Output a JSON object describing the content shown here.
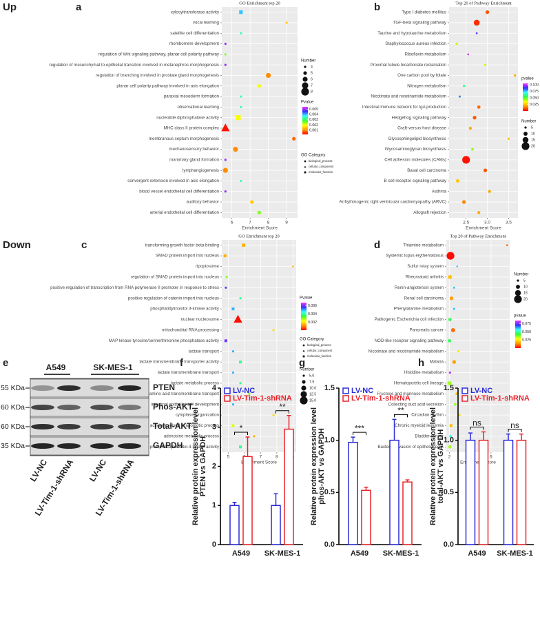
{
  "panels": {
    "up": "Up",
    "down": "Down",
    "letters": [
      "a",
      "b",
      "c",
      "d",
      "e",
      "f",
      "g",
      "h"
    ]
  },
  "blot": {
    "groups": [
      "A549",
      "SK-MES-1"
    ],
    "proteins": [
      "PTEN",
      "Phos-AKT",
      "Total-AKT",
      "GAPDH"
    ],
    "weights": [
      "55 KDa",
      "60 KDa",
      "60 KDa",
      "35 KDa"
    ],
    "lanes": [
      "LV-NC",
      "LV-Tim-1-shRNA",
      "LV-NC",
      "LV-Tim-1-shRNA"
    ]
  },
  "chart_data": [
    {
      "type": "dot",
      "title": "GO Enrichment top 20",
      "xlabel": "Enrichment Score",
      "categories": [
        "xylosyltransferase activity",
        "vocal learning",
        "satellite cell differentiation",
        "rhombomere development",
        "regulation of Wnt signaling pathway, planar cell polarity pathway",
        "regulation of mesenchymal to epithelial transition involved in metanephros morphogenesis",
        "regulation of branching involved in prostate gland morphogenesis",
        "planar cell polarity pathway involved in axis elongation",
        "paraxial mesoderm formation",
        "observational learning",
        "nucleotide diphosphatase activity",
        "MHC class II protein complex",
        "membranous septum morphogenesis",
        "mechanosensory behavior",
        "mammary gland formation",
        "lymphangiogenesis",
        "convergent extension involved in axis elongation",
        "blood vessel endothelial cell differentiation",
        "auditory behavior",
        "arterial endothelial cell differentiation"
      ],
      "values": [
        6.5,
        9.0,
        6.5,
        5.65,
        5.65,
        5.65,
        8.0,
        7.5,
        6.5,
        6.5,
        6.35,
        5.65,
        9.4,
        6.2,
        5.65,
        5.65,
        6.5,
        5.65,
        7.1,
        7.5
      ],
      "sizes": [
        5,
        4,
        4,
        4,
        4,
        4,
        6,
        5,
        4,
        4,
        6,
        8,
        5,
        6,
        4,
        6,
        4,
        4,
        5,
        5
      ],
      "pvalues": [
        0.004,
        0.0015,
        0.0035,
        0.005,
        0.0025,
        0.005,
        0.001,
        0.002,
        0.0035,
        0.0035,
        0.002,
        0.0003,
        0.0008,
        0.001,
        0.005,
        0.001,
        0.0035,
        0.005,
        0.0015,
        0.0025
      ],
      "shapes": [
        "molecular_function",
        "biological_process",
        "biological_process",
        "biological_process",
        "biological_process",
        "biological_process",
        "biological_process",
        "biological_process",
        "biological_process",
        "biological_process",
        "molecular_function",
        "cellular_component",
        "biological_process",
        "biological_process",
        "biological_process",
        "biological_process",
        "biological_process",
        "biological_process",
        "biological_process",
        "biological_process"
      ],
      "xlim": [
        5.45,
        9.6
      ],
      "xticks": [
        6,
        7,
        8,
        9
      ],
      "clim": [
        0.0002,
        0.0055
      ],
      "color_scale": [
        "#ff0000",
        "#ff9900",
        "#ffff00",
        "#33ff33",
        "#33ffff",
        "#3333ff",
        "#ff33ff"
      ],
      "size_legend": {
        "title": "Number",
        "values": [
          4,
          5,
          6,
          7,
          8
        ]
      },
      "color_legend": {
        "title": "Pvalue",
        "ticks": [
          0.005,
          0.004,
          0.003,
          0.002,
          0.001
        ]
      },
      "shape_legend": {
        "title": "GO Category",
        "names": [
          "biological_process",
          "cellular_component",
          "molecular_function"
        ]
      }
    },
    {
      "type": "dot",
      "title": "Top 20 of Pathway Enrichment",
      "xlabel": "Enrichment Score",
      "categories": [
        "Type I diabetes mellitus",
        "TGF-beta signaling pathway",
        "Taurine and hypotaurine metabolism",
        "Staphylococcus aureus infection",
        "Riboflavin metabolism",
        "Proximal tubule bicarbonate reclamation",
        "One carbon pool by folate",
        "Nitrogen metabolism",
        "Nicotinate and nicotinamide metabolism",
        "Intestinal immune network for IgA production",
        "Hedgehog signaling pathway",
        "Graft-versus-host disease",
        "Glycosphingolipid biosynthesis",
        "Glycosaminoglycan biosynthesis",
        "Cell adhesion molecules (CAMs)",
        "Basal cell carcinoma",
        "B cell receptor signaling pathway",
        "Asthma",
        "Arrhythmogenic right ventricular cardiomyopathy (ARVC)",
        "Allograft rejection"
      ],
      "values": [
        3.0,
        2.75,
        2.75,
        2.28,
        2.55,
        2.95,
        3.65,
        2.45,
        2.35,
        2.8,
        2.7,
        2.6,
        3.5,
        2.65,
        2.5,
        2.95,
        2.3,
        3.05,
        2.45,
        2.8
      ],
      "sizes": [
        9,
        15,
        4,
        6,
        4,
        5,
        5,
        5,
        5,
        8,
        9,
        7,
        5,
        6,
        20,
        9,
        8,
        7,
        9,
        7
      ],
      "pvalues": [
        0.01,
        0.005,
        0.09,
        0.04,
        0.1,
        0.04,
        0.02,
        0.06,
        0.08,
        0.012,
        0.01,
        0.02,
        0.025,
        0.045,
        0.002,
        0.01,
        0.025,
        0.02,
        0.015,
        0.02
      ],
      "xlim": [
        2.1,
        3.72
      ],
      "xticks": [
        {
          "value": 2.5,
          "label": "2.5"
        },
        {
          "value": 3.0,
          "label": "3.0"
        },
        {
          "value": 3.5,
          "label": "3.5"
        }
      ],
      "clim": [
        0.0,
        0.105
      ],
      "color_scale": [
        "#ff0000",
        "#ff9900",
        "#ffff00",
        "#33ff33",
        "#33ffff",
        "#3333ff",
        "#ff33ff"
      ],
      "size_legend": {
        "title": "Number",
        "values": [
          5,
          10,
          15,
          20
        ]
      },
      "color_legend": {
        "title": "pvalue",
        "ticks": [
          {
            "value": 0.1,
            "label": "0.100"
          },
          {
            "value": 0.075,
            "label": "0.075"
          },
          {
            "value": 0.05,
            "label": "0.050"
          },
          {
            "value": 0.025,
            "label": "0.025"
          }
        ]
      }
    },
    {
      "type": "dot",
      "title": "GO Enrichment top 20",
      "xlabel": "Enrichment Score",
      "categories": [
        "transforming growth factor beta binding",
        "SMAD protein import into nucleus",
        "ripoptosome",
        "regulation of SMAD protein import into nucleus",
        "positive regulation of transcription from RNA polymerase II promoter in response to stress",
        "positive regulation of catenin import into nucleus",
        "phosphatidylinositol 3-kinase activity",
        "nuclear nucleosome",
        "mitochondrial RNA processing",
        "MAP kinase tyrosine/serine/threonine phosphatase activity",
        "lactate transport",
        "lactate transmembrane transporter activity",
        "lactate transmembrane transport",
        "lactate metabolic process",
        "L-alpha-amino acid transmembrane transport",
        "intestinal epithelial cell development",
        "cytoplasm organization",
        "cysteine-type endopeptidase activity involved in apoptotic process",
        "adenosine metabolic process",
        "1-phosphatidylinositol-3-kinase activity"
      ],
      "values": [
        5.95,
        4.8,
        9.0,
        4.9,
        4.85,
        5.75,
        5.3,
        5.6,
        7.8,
        4.85,
        5.3,
        5.75,
        5.3,
        5.75,
        6.3,
        5.3,
        7.8,
        5.3,
        6.6,
        5.75
      ],
      "sizes": [
        7,
        7,
        5,
        5,
        5,
        5,
        6,
        15,
        5,
        6,
        5,
        6,
        5,
        5,
        5,
        5,
        5,
        6,
        5,
        6
      ],
      "pvalues": [
        0.0015,
        0.0015,
        0.0015,
        0.003,
        0.006,
        0.004,
        0.005,
        0.0002,
        0.002,
        0.006,
        0.005,
        0.004,
        0.005,
        0.004,
        0.003,
        0.005,
        0.002,
        0.0025,
        0.0015,
        0.004
      ],
      "shapes": [
        "molecular_function",
        "biological_process",
        "cellular_component",
        "biological_process",
        "biological_process",
        "biological_process",
        "molecular_function",
        "cellular_component",
        "biological_process",
        "molecular_function",
        "biological_process",
        "molecular_function",
        "biological_process",
        "biological_process",
        "biological_process",
        "biological_process",
        "biological_process",
        "molecular_function",
        "biological_process",
        "molecular_function"
      ],
      "xlim": [
        4.6,
        9.2
      ],
      "xticks": [
        5,
        6,
        7,
        8,
        9
      ],
      "clim": [
        0.0001,
        0.0068
      ],
      "color_scale": [
        "#ff0000",
        "#ff9900",
        "#ffff00",
        "#33ff33",
        "#33ffff",
        "#3333ff",
        "#ff33ff"
      ],
      "size_legend": {
        "title": "Number",
        "values": [
          {
            "value": 5,
            "label": "5.0"
          },
          {
            "value": 7.5,
            "label": "7.5"
          },
          {
            "value": 10,
            "label": "10.0"
          },
          {
            "value": 12.5,
            "label": "12.5"
          },
          {
            "value": 15,
            "label": "15.0"
          }
        ]
      },
      "color_legend": {
        "title": "Pvalue",
        "ticks": [
          0.006,
          0.004,
          0.002
        ]
      },
      "shape_legend": {
        "title": "GO Category",
        "names": [
          "biological_process",
          "cellular_component",
          "molecular_function"
        ]
      }
    },
    {
      "type": "dot",
      "title": "Top 20 of Pathway Enrichment",
      "xlabel": "Enrichment Score",
      "categories": [
        "Thiamine metabolism",
        "Systemic lupus erythematosus",
        "Sulfur relay system",
        "Rheumatoid arthritis",
        "Renin-angiotensin system",
        "Renal cell carcinoma",
        "Phenylalanine metabolism",
        "Pathogenic Escherichia coli infection",
        "Pancreatic cancer",
        "NOD-like receptor signaling pathway",
        "Nicotinate and nicotinamide metabolism",
        "Malaria",
        "Histidine metabolism",
        "Hematopoietic cell lineage",
        "Fructose and mannose metabolism",
        "Collecting duct acid secretion",
        "Circadian rhythm",
        "Chronic myeloid leukemia",
        "Bladder cancer",
        "Bacterial invasion of epithelial cells"
      ],
      "values": [
        7.55,
        2.1,
        2.75,
        2.05,
        2.45,
        2.2,
        2.45,
        2.05,
        2.35,
        2.0,
        2.85,
        2.45,
        2.05,
        2.0,
        2.7,
        2.55,
        2.95,
        2.15,
        2.1,
        2.05
      ],
      "sizes": [
        4,
        20,
        4,
        10,
        5,
        9,
        5,
        8,
        10,
        8,
        5,
        9,
        5,
        10,
        6,
        6,
        6,
        8,
        6,
        8
      ],
      "pvalues": [
        0.01,
        0.001,
        0.06,
        0.02,
        0.06,
        0.015,
        0.06,
        0.045,
        0.01,
        0.045,
        0.025,
        0.015,
        0.08,
        0.035,
        0.02,
        0.035,
        0.025,
        0.02,
        0.055,
        0.035
      ],
      "xlim": [
        1.7,
        7.8
      ],
      "xticks": [
        2,
        4,
        6
      ],
      "clim": [
        0.0,
        0.085
      ],
      "color_scale": [
        "#ff0000",
        "#ff9900",
        "#ffff00",
        "#33ff33",
        "#33ffff",
        "#3333ff",
        "#ff33ff"
      ],
      "size_legend": {
        "title": "Number",
        "values": [
          5,
          10,
          15,
          20
        ]
      },
      "color_legend": {
        "title": "pvalue",
        "ticks": [
          {
            "value": 0.075,
            "label": "0.075"
          },
          {
            "value": 0.05,
            "label": "0.050"
          },
          {
            "value": 0.025,
            "label": "0.025"
          }
        ]
      }
    },
    {
      "type": "bar",
      "ylabel": [
        "Relative protein expression level",
        "PTEN vs GAPDH"
      ],
      "categories": [
        "A549",
        "SK-MES-1"
      ],
      "series": [
        {
          "name": "LV-NC",
          "color": "#2b2bd9",
          "values": [
            1.0,
            1.0
          ],
          "errors": [
            0.08,
            0.3
          ]
        },
        {
          "name": "LV-Tim-1-shRNA",
          "color": "#e8232a",
          "values": [
            2.25,
            2.95
          ],
          "errors": [
            0.5,
            0.35
          ]
        }
      ],
      "significance": [
        "*",
        "**"
      ],
      "ylim": [
        0,
        4
      ],
      "yticks": [
        0,
        1,
        2,
        3,
        4
      ]
    },
    {
      "type": "bar",
      "ylabel": [
        "Relative protein expression level",
        "phos-AKT vs GAPDH"
      ],
      "categories": [
        "A549",
        "SK-MES-1"
      ],
      "series": [
        {
          "name": "LV-NC",
          "color": "#2b2bd9",
          "values": [
            0.98,
            1.0
          ],
          "errors": [
            0.05,
            0.2
          ]
        },
        {
          "name": "LV-Tim-1-shRNA",
          "color": "#e8232a",
          "values": [
            0.52,
            0.6
          ],
          "errors": [
            0.03,
            0.02
          ]
        }
      ],
      "significance": [
        "***",
        "**"
      ],
      "ylim": [
        0,
        1.5
      ],
      "yticks": [
        {
          "value": 0,
          "label": "0.0"
        },
        {
          "value": 0.5,
          "label": "0.5"
        },
        {
          "value": 1.0,
          "label": "1.0"
        },
        {
          "value": 1.5,
          "label": "1.5"
        }
      ]
    },
    {
      "type": "bar",
      "ylabel": [
        "Relative protein expression level",
        "total-AKT vs GAPDH"
      ],
      "categories": [
        "A549",
        "SK-MES-1"
      ],
      "series": [
        {
          "name": "LV-NC",
          "color": "#2b2bd9",
          "values": [
            1.0,
            1.0
          ],
          "errors": [
            0.07,
            0.06
          ]
        },
        {
          "name": "LV-Tim-1-shRNA",
          "color": "#e8232a",
          "values": [
            1.0,
            1.0
          ],
          "errors": [
            0.08,
            0.06
          ]
        }
      ],
      "significance": [
        "ns",
        "ns"
      ],
      "ylim": [
        0,
        1.5
      ],
      "yticks": [
        {
          "value": 0,
          "label": "0.0"
        },
        {
          "value": 0.5,
          "label": "0.5"
        },
        {
          "value": 1.0,
          "label": "1.0"
        },
        {
          "value": 1.5,
          "label": "1.5"
        }
      ]
    }
  ]
}
